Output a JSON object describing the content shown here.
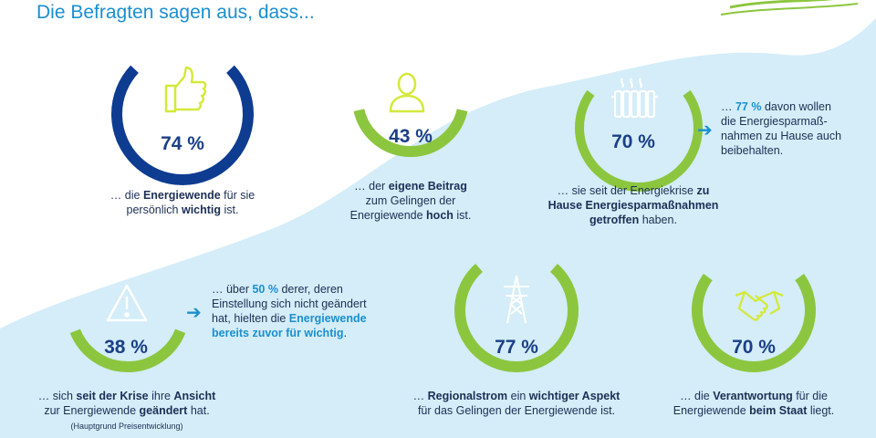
{
  "header": {
    "subtitle": "Die Befragten sagen aus, dass..."
  },
  "colors": {
    "blue": "#0d3c91",
    "green": "#8cc63f",
    "wave": "#d4edf8",
    "accent": "#1a8fd0",
    "text": "#1c2f55"
  },
  "stats": [
    {
      "id": "important",
      "percent": 74,
      "label": "74 %",
      "icon": "thumbs-up-icon",
      "caption": [
        "… die ",
        "Energiewende",
        " für sie",
        "persönlich ",
        "wichtig",
        " ist."
      ]
    },
    {
      "id": "contribution",
      "percent": 43,
      "label": "43 %",
      "icon": "person-icon",
      "caption": [
        "… der ",
        "eigene Beitrag",
        "zum Gelingen der",
        "Energiewende ",
        "hoch",
        " ist."
      ]
    },
    {
      "id": "measures",
      "percent": 70,
      "label": "70 %",
      "icon": "radiator-icon",
      "caption": [
        "… sie seit der Energiekrise ",
        "zu",
        "Hause Energiesparmaßnahmen",
        "getroffen",
        " haben."
      ]
    },
    {
      "id": "changed",
      "percent": 38,
      "label": "38 %",
      "icon": "warning-icon",
      "caption": [
        "… sich ",
        "seit der Krise",
        " ihre ",
        "Ansicht",
        "zur Energiewende ",
        "geändert",
        " hat.",
        "(Hauptgrund Preisentwicklung)"
      ]
    },
    {
      "id": "regional",
      "percent": 77,
      "label": "77 %",
      "icon": "power-pylon-icon",
      "caption": [
        "… ",
        "Regionalstrom",
        " ein ",
        "wichtiger Aspekt",
        "für das Gelingen der Energiewende ist."
      ]
    },
    {
      "id": "state",
      "percent": 70,
      "label": "70 %",
      "icon": "handshake-icon",
      "caption": [
        "… die ",
        "Verantwortung",
        " für die",
        "Energiewende ",
        "beim Staat",
        " liegt."
      ]
    }
  ],
  "notes": {
    "measures": [
      "… ",
      "77 %",
      " davon wollen",
      "die Energiesparmaß-",
      "nahmen zu Hause auch",
      "beibehalten."
    ],
    "changed": [
      "… über ",
      "50 %",
      " derer, deren",
      "Einstellung sich nicht geändert",
      "hat, hielten die ",
      "Energiewende",
      "bereits zuvor für wichtig",
      "."
    ]
  },
  "arrow": "➔"
}
